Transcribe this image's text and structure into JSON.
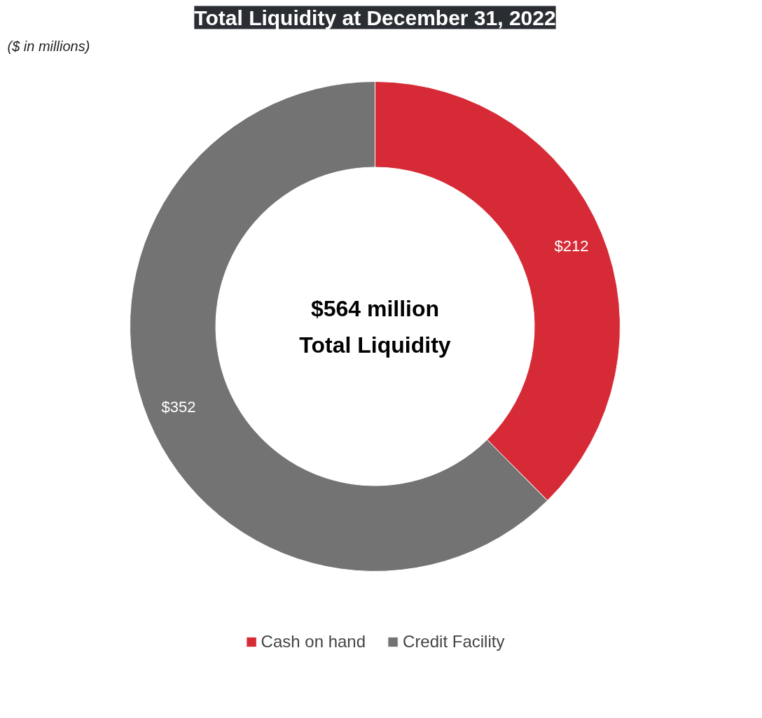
{
  "chart_data": {
    "type": "donut",
    "title": "Total Liquidity at December 31, 2022",
    "subtitle": "($ in millions)",
    "categories": [
      "Cash on hand",
      "Credit Facility"
    ],
    "values": [
      212,
      352
    ],
    "colors": [
      "#d62a36",
      "#737373"
    ],
    "value_labels": [
      "$212",
      "$352"
    ],
    "annotations": [
      "$564 million",
      "Total Liquidity"
    ],
    "legend": "bottom"
  }
}
